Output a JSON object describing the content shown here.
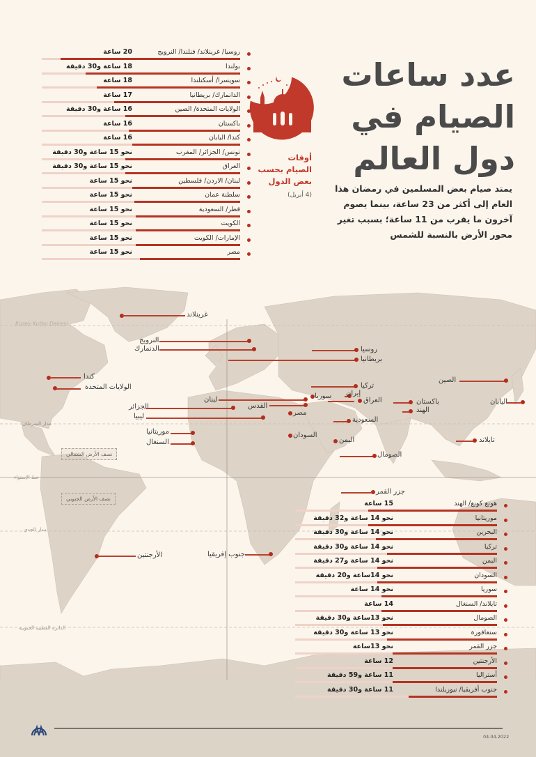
{
  "title": {
    "line1": "عدد ساعات",
    "line2": "الصيام في",
    "line3": "دول العالم"
  },
  "lead": "يمتد صيام بعض المسلمين في رمضان هذا العام إلى أكثر من 23 ساعة، بينما يصوم آخرون ما يقرب من 11 ساعة؛ بسبب تغير محور الأرض بالنسبة للشمس",
  "subtitle": {
    "line1": "أوقات",
    "line2": "الصيام بحسب",
    "line3": "بعض الدول",
    "date": "(4 أبريل)"
  },
  "icons": {
    "emblem": "crescent-mosque-icon",
    "logo": "aa-agency-logo"
  },
  "colors": {
    "accent": "#b53322",
    "track": "#efd2c8",
    "background": "#fcf5ec",
    "land": "#ddd3c6",
    "title": "#4a4a4a"
  },
  "top_list": [
    {
      "country": "روسيا/ غرينلاند/ فنلندا/ النرويج",
      "value": "20 ساعة",
      "fraction": 1.0
    },
    {
      "country": "بولندا",
      "value": "18 ساعة و30 دقيقة",
      "fraction": 0.86
    },
    {
      "country": "سويسرا/ أسكتلندا",
      "value": "18 ساعة",
      "fraction": 0.8
    },
    {
      "country": "الدانمارك/ بريطانيا",
      "value": "17 ساعة",
      "fraction": 0.7
    },
    {
      "country": "الولايات المتحدة/ الصين",
      "value": "16 ساعة و30 دقيقة",
      "fraction": 0.64
    },
    {
      "country": "باكستان",
      "value": "16 ساعة",
      "fraction": 0.62
    },
    {
      "country": "كندا/ اليابان",
      "value": "16 ساعة",
      "fraction": 0.6
    },
    {
      "country": "تونس/ الجزائر/ المغرب",
      "value": "نحو 15 ساعة و30 دقيقة",
      "fraction": 0.64
    },
    {
      "country": "العراق",
      "value": "نحو 15 ساعة و30 دقيقة",
      "fraction": 0.64
    },
    {
      "country": "لبنان/ الاردن/ فلسطين",
      "value": "نحو 15 ساعة",
      "fraction": 0.6
    },
    {
      "country": "سلطنة عمان",
      "value": "نحو 15 ساعة",
      "fraction": 0.59
    },
    {
      "country": "قطر/ السعودية",
      "value": "نحو 15 ساعة",
      "fraction": 0.58
    },
    {
      "country": "الكويت",
      "value": "نحو 15 ساعة",
      "fraction": 0.58
    },
    {
      "country": "الإمارات/ الكويت",
      "value": "نحو 15 ساعة",
      "fraction": 0.58
    },
    {
      "country": "مصر",
      "value": "نحو 15 ساعة",
      "fraction": 0.56
    }
  ],
  "bottom_list": [
    {
      "country": "هونغ كونغ/ الهند",
      "value": "15 ساعة",
      "fraction": 0.7
    },
    {
      "country": "موريتانيا",
      "value": "نحو 14 ساعة و32 دقيقة",
      "fraction": 0.7
    },
    {
      "country": "البحرين",
      "value": "نحو 14 ساعة و30 دقيقة",
      "fraction": 0.66
    },
    {
      "country": "تركيا",
      "value": "نحو 14 ساعة و30 دقيقة",
      "fraction": 0.6
    },
    {
      "country": "اليمن",
      "value": "نحو 14 ساعة و27 دقيقة",
      "fraction": 0.65
    },
    {
      "country": "السودان",
      "value": "نحو 14ساعة و20 دقيقة",
      "fraction": 0.65
    },
    {
      "country": "سوريا",
      "value": "نحو 14 ساعة",
      "fraction": 0.63
    },
    {
      "country": "تايلاند/ السنغال",
      "value": "14 ساعة",
      "fraction": 0.63
    },
    {
      "country": "الصومال",
      "value": "نحو 13ساعة و30 دقيقة",
      "fraction": 0.62
    },
    {
      "country": "سنغافورة",
      "value": "نحو 13 ساعة و30 دقيقة",
      "fraction": 0.6
    },
    {
      "country": "جزر القمر",
      "value": "نحو 13ساعة",
      "fraction": 0.57
    },
    {
      "country": "الأرجنتين",
      "value": "12 ساعة",
      "fraction": 0.57
    },
    {
      "country": "أستراليا",
      "value": "11 ساعة و59 دقيقة",
      "fraction": 0.57
    },
    {
      "country": "جنوب أفريقيا/ نيوزيلندا",
      "value": "11 ساعة و30 دقيقة",
      "fraction": 0.48
    }
  ],
  "map": {
    "labels": {
      "greenland": "غرينلاند",
      "norway": "النرويج",
      "denmark": "الدنمارك",
      "russia": "روسيا",
      "britain": "بريطانيا",
      "canada": "كندا",
      "usa": "الولايات المتحدة",
      "china": "الصين",
      "turkey": "تركيا",
      "iran": "إيران",
      "syria": "سوريا",
      "iraq": "العراق",
      "lebanon": "لبنان",
      "jerusalem": "القدس",
      "pakistan": "باكستان",
      "india": "الهند",
      "japan": "اليابان",
      "algeria": "الجزائر",
      "libya": "ليبيا",
      "egypt": "مصر",
      "saudi": "السعودية",
      "mauritania": "موريتانيا",
      "senegal": "السنغال",
      "sudan": "السودان",
      "yemen": "اليمن",
      "thailand": "تايلاند",
      "somalia": "الصومال",
      "comoros": "جزر القمر",
      "argentina": "الأرجنتين",
      "south_africa": "جنوب إفريقيا"
    },
    "geo": {
      "arctic_circle": "Kuzey Kutbu Dairesi",
      "tropic_cancer": "مدار السرطان",
      "equator": "خط الإستواء",
      "tropic_capricorn": "مدار الجدي",
      "antarctic_circle": "الدائرة القطبية الجنوبية",
      "north_hemisphere": "نصف الأرض الشمالي",
      "south_hemisphere": "نصف الأرض الجنوبي"
    }
  },
  "footer": {
    "date": "04.04.2022"
  }
}
